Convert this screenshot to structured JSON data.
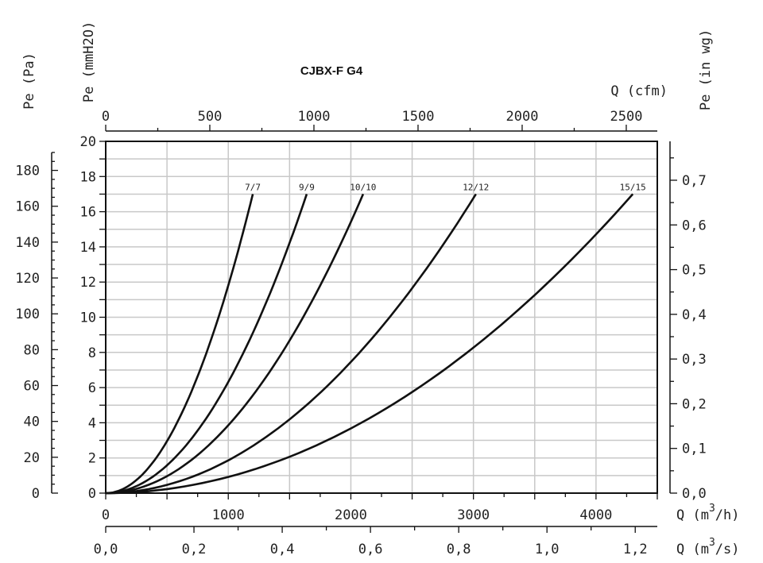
{
  "chart_data": {
    "type": "line",
    "title": "CJBX-F G4",
    "axes": {
      "left_outer": {
        "label": "Pe (Pa)",
        "ticks": [
          0,
          20,
          40,
          60,
          80,
          100,
          120,
          140,
          160,
          180
        ],
        "range": [
          0,
          196.2
        ]
      },
      "left_inner": {
        "label": "Pe (mmH2O)",
        "ticks": [
          0,
          2,
          4,
          6,
          8,
          10,
          12,
          14,
          16,
          18,
          20
        ],
        "range": [
          0,
          20
        ]
      },
      "right": {
        "label": "Pe (in wg)",
        "tick_labels": [
          "0,0",
          "0,1",
          "0,2",
          "0,3",
          "0,4",
          "0,5",
          "0,6",
          "0,7"
        ],
        "range": [
          0,
          0.787
        ]
      },
      "top": {
        "label": "Q (cfm)",
        "ticks": [
          0,
          500,
          1000,
          1500,
          2000,
          2500
        ],
        "range": [
          0,
          2649
        ]
      },
      "bottom": {
        "label_main": "Q (m",
        "label_sup": "3",
        "label_end": "/h)",
        "ticks": [
          0,
          1000,
          2000,
          3000,
          4000
        ],
        "range": [
          0,
          4500
        ]
      },
      "bottom_second": {
        "label_main": "Q (m",
        "label_sup": "3",
        "label_end": "/s)",
        "tick_labels": [
          "0,0",
          "0,2",
          "0,4",
          "0,6",
          "0,8",
          "1,0",
          "1,2"
        ],
        "range": [
          0,
          1.25
        ]
      }
    },
    "grid": true,
    "series": [
      {
        "name": "7/7",
        "x": [
          0,
          300,
          600,
          900,
          1200
        ],
        "y": [
          0,
          1.06,
          4.25,
          9.56,
          17
        ]
      },
      {
        "name": "9/9",
        "x": [
          0,
          400,
          800,
          1200,
          1640
        ],
        "y": [
          0,
          1.01,
          4.05,
          9.1,
          17
        ]
      },
      {
        "name": "10/10",
        "x": [
          0,
          500,
          1000,
          1500,
          2100
        ],
        "y": [
          0,
          0.96,
          3.85,
          8.67,
          17
        ]
      },
      {
        "name": "12/12",
        "x": [
          0,
          750,
          1500,
          2250,
          3020
        ],
        "y": [
          0,
          1.05,
          4.2,
          9.45,
          17
        ]
      },
      {
        "name": "15/15",
        "x": [
          0,
          1000,
          2000,
          3000,
          4300
        ],
        "y": [
          0,
          0.92,
          3.68,
          8.27,
          17
        ]
      }
    ]
  }
}
